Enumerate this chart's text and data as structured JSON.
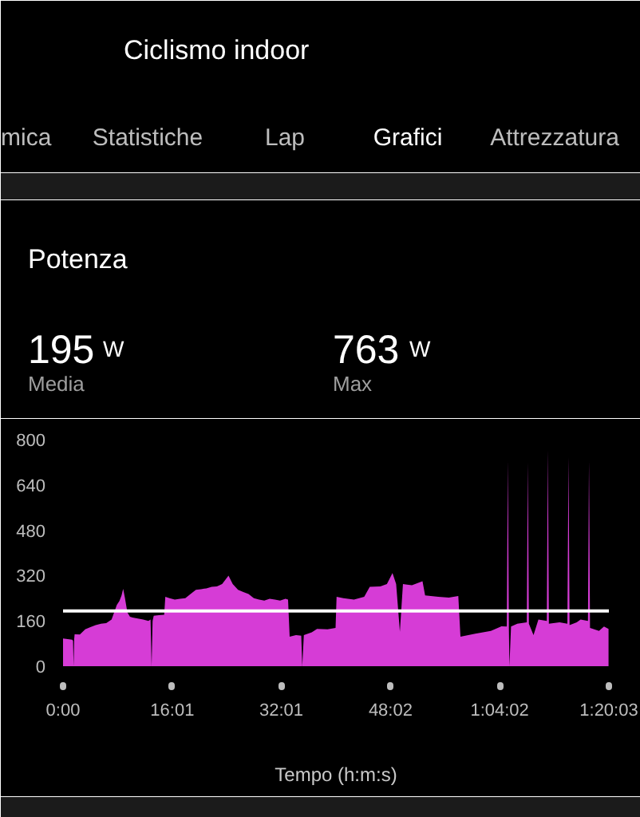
{
  "chart_data": {
    "type": "area",
    "title": "Potenza",
    "xlabel": "Tempo (h:m:s)",
    "annotations": [
      "Ciclismo indoor",
      "mica",
      "Statistiche",
      "Lap",
      "Grafici",
      "Attrezzatura",
      "195",
      "W",
      "Media",
      "763",
      "W",
      "Max"
    ],
    "x": [
      0,
      40,
      79,
      88,
      93,
      98,
      102,
      148,
      195,
      241,
      287,
      334,
      380,
      427,
      450,
      473,
      496,
      515,
      529,
      545,
      566,
      589,
      612,
      658,
      705,
      751,
      770,
      779,
      788,
      798,
      844,
      890,
      900,
      937,
      983,
      1029,
      1076,
      1122,
      1169,
      1215,
      1261,
      1308,
      1354,
      1400,
      1456,
      1493,
      1540,
      1586,
      1632,
      1679,
      1725,
      1771,
      1818,
      1864,
      1910,
      1957,
      1980,
      1994,
      2050,
      2096,
      2105,
      2119,
      2189,
      2235,
      2328,
      2398,
      2407,
      2467,
      2560,
      2650,
      2699,
      2792,
      2850,
      2899,
      2931,
      2964,
      2991,
      3070,
      3163,
      3186,
      3302,
      3395,
      3478,
      3497,
      3627,
      3765,
      3858,
      3905,
      3914,
      3923,
      3928,
      3942,
      3997,
      4081,
      4090,
      4099,
      4140,
      4183,
      4257,
      4266,
      4275,
      4369,
      4438,
      4448,
      4457,
      4520,
      4554,
      4619,
      4628,
      4637,
      4716,
      4760,
      4800
    ],
    "values": [
      98,
      96,
      94,
      90,
      0,
      95,
      113,
      112,
      130,
      138,
      145,
      150,
      152,
      165,
      190,
      216,
      230,
      250,
      273,
      240,
      190,
      175,
      172,
      168,
      165,
      160,
      165,
      0,
      160,
      178,
      180,
      182,
      245,
      240,
      235,
      238,
      240,
      255,
      270,
      272,
      275,
      280,
      282,
      290,
      320,
      290,
      270,
      262,
      255,
      240,
      235,
      232,
      238,
      235,
      232,
      238,
      235,
      104,
      110,
      108,
      0,
      110,
      120,
      132,
      130,
      135,
      245,
      240,
      235,
      245,
      280,
      282,
      290,
      329,
      290,
      122,
      290,
      286,
      300,
      250,
      245,
      242,
      248,
      104,
      115,
      125,
      141,
      140,
      725,
      140,
      0,
      140,
      150,
      155,
      719,
      150,
      110,
      165,
      160,
      763,
      150,
      155,
      150,
      738,
      145,
      155,
      165,
      160,
      725,
      135,
      125,
      140,
      132
    ],
    "color": "#d63cd6",
    "xlim": [
      0,
      4803
    ],
    "xticks": [
      {
        "value": 0,
        "label": "0:00"
      },
      {
        "value": 961,
        "label": "16:01"
      },
      {
        "value": 1921,
        "label": "32:01"
      },
      {
        "value": 2882,
        "label": "48:02"
      },
      {
        "value": 3842,
        "label": "1:04:02"
      },
      {
        "value": 4803,
        "label": "1:20:03"
      }
    ],
    "ylim": [
      0,
      800
    ],
    "yticks": [
      0,
      160,
      320,
      480,
      640,
      800
    ],
    "ref_lines": [
      {
        "axis": "y",
        "value": 195,
        "color": "#ffffff"
      }
    ]
  }
}
